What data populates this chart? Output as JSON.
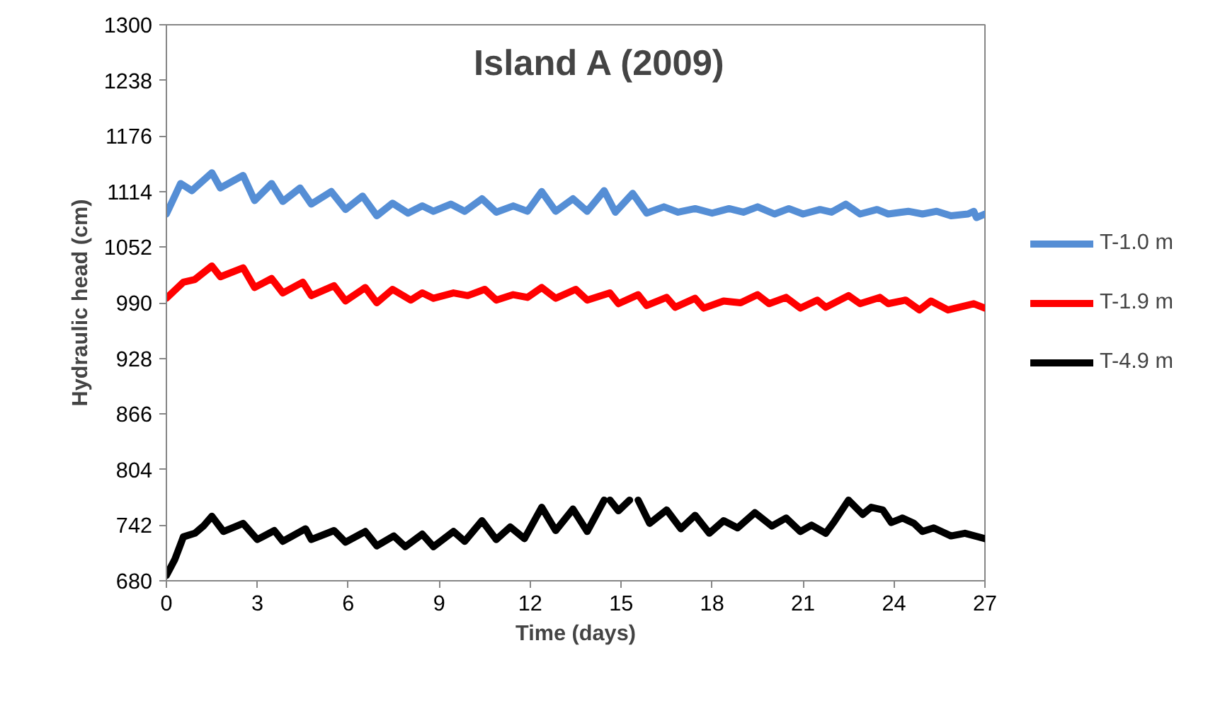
{
  "chart_data": {
    "type": "line",
    "title": "Island A (2009)",
    "xlabel": "Time (days)",
    "ylabel": "Hydraulic head (cm)",
    "xlim": [
      0,
      27
    ],
    "xticks": [
      0,
      3,
      6,
      9,
      12,
      15,
      18,
      21,
      24,
      27
    ],
    "ylim": [
      680,
      1300
    ],
    "yticks": [
      680,
      742,
      804,
      866,
      928,
      990,
      1052,
      1114,
      1176,
      1238,
      1300
    ],
    "grid": false,
    "legend": "right",
    "marker": "none",
    "line_style": "solid",
    "series": [
      {
        "name": "T-1.0 m",
        "color": "#558ed5",
        "x": [
          0,
          0.47,
          0.84,
          1.5,
          1.78,
          2.53,
          2.91,
          3.47,
          3.84,
          4.41,
          4.78,
          5.44,
          5.91,
          6.47,
          6.94,
          7.46,
          7.97,
          8.44,
          8.81,
          9.38,
          9.84,
          10.41,
          10.88,
          11.44,
          11.91,
          12.38,
          12.84,
          13.41,
          13.88,
          14.44,
          14.81,
          15.38,
          15.84,
          16.41,
          16.88,
          17.44,
          18.0,
          18.56,
          19.03,
          19.5,
          20.06,
          20.53,
          21.0,
          21.56,
          21.94,
          22.41,
          22.88,
          23.44,
          23.81,
          24.47,
          24.94,
          25.41,
          25.88,
          26.44,
          26.63,
          26.72,
          27
        ],
        "values": [
          1089,
          1123,
          1115,
          1135,
          1118,
          1132,
          1104,
          1123,
          1103,
          1118,
          1100,
          1114,
          1094,
          1109,
          1087,
          1101,
          1090,
          1098,
          1092,
          1100,
          1092,
          1106,
          1091,
          1098,
          1092,
          1114,
          1092,
          1106,
          1092,
          1115,
          1091,
          1112,
          1090,
          1097,
          1091,
          1095,
          1090,
          1095,
          1091,
          1097,
          1089,
          1095,
          1089,
          1094,
          1091,
          1100,
          1089,
          1094,
          1089,
          1092,
          1089,
          1092,
          1087,
          1089,
          1092,
          1085,
          1089
        ]
      },
      {
        "name": "T-1.9 m",
        "color": "#ff0000",
        "x": [
          0,
          0.56,
          0.94,
          1.5,
          1.78,
          2.53,
          2.91,
          3.47,
          3.84,
          4.5,
          4.78,
          5.53,
          5.91,
          6.56,
          6.94,
          7.46,
          8.06,
          8.44,
          8.81,
          9.47,
          9.94,
          10.5,
          10.88,
          11.44,
          11.91,
          12.38,
          12.84,
          13.5,
          13.88,
          14.63,
          14.91,
          15.56,
          15.84,
          16.5,
          16.78,
          17.44,
          17.72,
          18.38,
          18.94,
          19.5,
          19.88,
          20.44,
          20.91,
          21.47,
          21.75,
          22.5,
          22.88,
          23.53,
          23.81,
          24.38,
          24.84,
          25.22,
          25.78,
          26.63,
          27
        ],
        "values": [
          995,
          1013,
          1016,
          1031,
          1019,
          1029,
          1007,
          1017,
          1001,
          1013,
          998,
          1009,
          992,
          1007,
          990,
          1005,
          993,
          1001,
          995,
          1001,
          998,
          1005,
          993,
          999,
          996,
          1007,
          995,
          1005,
          993,
          1001,
          989,
          999,
          987,
          996,
          985,
          995,
          984,
          992,
          990,
          999,
          989,
          996,
          984,
          993,
          985,
          998,
          989,
          996,
          989,
          993,
          982,
          992,
          982,
          989,
          984
        ]
      },
      {
        "name": "T-4.9 m",
        "color": "#000000",
        "x": [
          0,
          0.28,
          0.56,
          0.94,
          1.22,
          1.5,
          1.88,
          2.25,
          2.53,
          3.0,
          3.56,
          3.84,
          4.59,
          4.78,
          5.53,
          5.91,
          6.56,
          6.94,
          7.5,
          7.88,
          8.44,
          8.81,
          9.47,
          9.84,
          10.41,
          10.88,
          11.34,
          11.81,
          12.38,
          12.84,
          13.41,
          13.88,
          14.44,
          14.53,
          14.63,
          14.91,
          15.28,
          15.4,
          15.56,
          15.94,
          16.5,
          16.97,
          17.44,
          17.91,
          18.38,
          18.84,
          19.41,
          19.97,
          20.44,
          20.91,
          21.28,
          21.75,
          22.03,
          22.5,
          22.97,
          23.25,
          23.63,
          23.91,
          24.28,
          24.66,
          24.94,
          25.31,
          25.88,
          26.34,
          27
        ],
        "values": [
          686,
          704,
          729,
          733,
          741,
          752,
          735,
          740,
          744,
          726,
          736,
          724,
          738,
          726,
          736,
          723,
          735,
          719,
          730,
          718,
          732,
          718,
          735,
          724,
          747,
          726,
          740,
          727,
          762,
          736,
          760,
          735,
          770,
          null,
          770,
          758,
          770,
          null,
          770,
          744,
          759,
          738,
          753,
          733,
          747,
          739,
          756,
          741,
          750,
          735,
          742,
          733,
          746,
          770,
          754,
          762,
          759,
          745,
          750,
          744,
          735,
          739,
          730,
          733,
          727
        ]
      }
    ]
  }
}
